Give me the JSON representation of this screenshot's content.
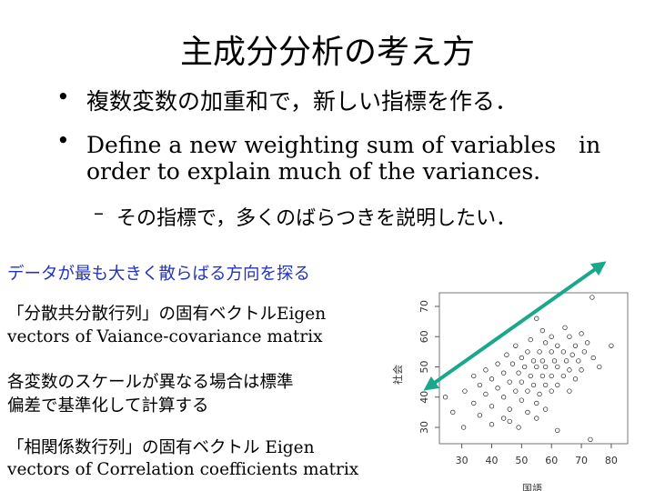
{
  "title": "主成分分析の考え方",
  "bullets": [
    [
      "複数変数の加重和で，新しい指標を作る．"
    ],
    [
      "Define a new weighting sum of variables　in",
      "order to explain much of the variances."
    ]
  ],
  "sub_bullets": [
    [
      "その指標で，多くのばらつきを説明したい．"
    ]
  ],
  "notes": [
    [
      "データが最も大きく散らばる方向を探る"
    ],
    [
      "「分散共分散行列」の固有ベクトルEigen",
      "vectors of Vaiance-covariance matrix"
    ],
    [
      "各変数のスケールが異なる場合は標準",
      "偏差で基準化して計算する"
    ],
    [
      "「相関係数行列」の固有ベクトル Eigen",
      "vectors of Correlation coefficients matrix"
    ]
  ],
  "chart_data": {
    "type": "scatter",
    "x_label": "国語",
    "y_label": "社会",
    "x": [
      73.6,
      55,
      64.5,
      60,
      66,
      70,
      58,
      62,
      68,
      72,
      48,
      52,
      56,
      60,
      64,
      67,
      71,
      45,
      50,
      54,
      57,
      61,
      65,
      69,
      74,
      42,
      47,
      51,
      55,
      58,
      62,
      66,
      70,
      38,
      44,
      49,
      53,
      57,
      60,
      64,
      68,
      34,
      40,
      46,
      50,
      54,
      58,
      62,
      36,
      42,
      48,
      52,
      56,
      60,
      66,
      31,
      38,
      44,
      50,
      55,
      24.5,
      34,
      40,
      46,
      52,
      58,
      27,
      36,
      44,
      46,
      55,
      30.6,
      40,
      49,
      62,
      73,
      57,
      53,
      76,
      80
    ],
    "y": [
      73,
      66,
      63,
      60,
      60,
      61,
      58,
      57,
      57,
      58,
      57,
      55,
      55,
      55,
      55,
      54,
      55,
      54,
      53,
      52,
      52,
      52,
      52,
      52,
      53,
      51,
      51,
      50,
      50,
      50,
      50,
      49,
      49,
      49,
      48,
      48,
      47,
      47,
      47,
      47,
      46,
      47,
      46,
      45,
      45,
      44,
      44,
      44,
      44,
      43,
      42,
      42,
      41,
      42,
      42,
      42,
      41,
      40,
      39,
      38,
      40,
      38,
      37,
      36,
      35,
      36,
      35,
      34,
      33,
      32,
      33,
      30,
      31,
      30,
      29,
      26,
      62,
      59,
      50,
      57
    ],
    "xlim": [
      22.5,
      85.5
    ],
    "ylim": [
      24.6,
      74.5
    ],
    "xticks": [
      30,
      40,
      50,
      60,
      70,
      80
    ],
    "yticks": [
      30,
      40,
      50,
      60,
      70
    ]
  }
}
